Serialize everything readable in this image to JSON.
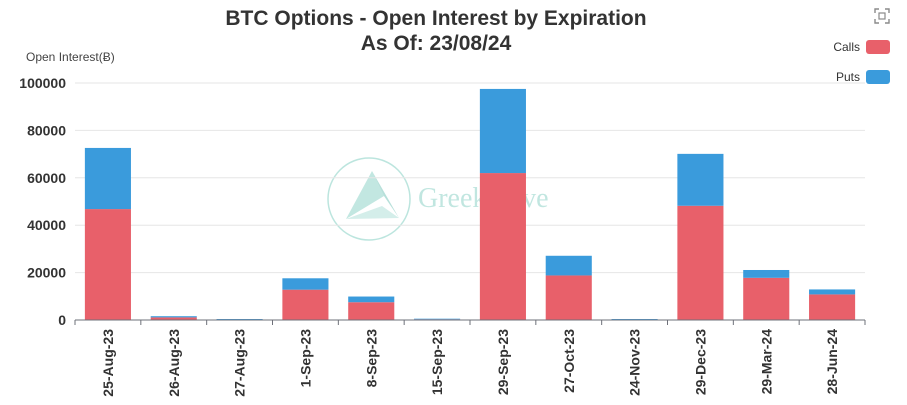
{
  "chart_data": {
    "type": "bar",
    "stacked": true,
    "title": "BTC Options - Open Interest by Expiration",
    "subtitle": "As Of: 23/08/24",
    "ylabel": "Open Interest(Ƀ)",
    "xlabel": "",
    "ylim": [
      0,
      100000
    ],
    "yticks": [
      0,
      20000,
      40000,
      60000,
      80000,
      100000
    ],
    "grid": true,
    "legend_position": "top-right",
    "categories": [
      "25-Aug-23",
      "26-Aug-23",
      "27-Aug-23",
      "1-Sep-23",
      "8-Sep-23",
      "15-Sep-23",
      "29-Sep-23",
      "27-Oct-23",
      "24-Nov-23",
      "29-Dec-23",
      "29-Mar-24",
      "28-Jun-24"
    ],
    "series": [
      {
        "name": "Calls",
        "color": "#e8606a",
        "values": [
          46800,
          1100,
          150,
          12800,
          7500,
          300,
          62000,
          18800,
          150,
          48200,
          17800,
          10800
        ]
      },
      {
        "name": "Puts",
        "color": "#3a9bdc",
        "values": [
          25800,
          500,
          100,
          4800,
          2400,
          200,
          35500,
          8300,
          150,
          21900,
          3300,
          2100
        ]
      }
    ]
  },
  "watermark": {
    "text": "GreeksLive",
    "icon": "greekslive-logo-icon"
  },
  "toolbox": {
    "icon": "fullscreen-icon"
  }
}
